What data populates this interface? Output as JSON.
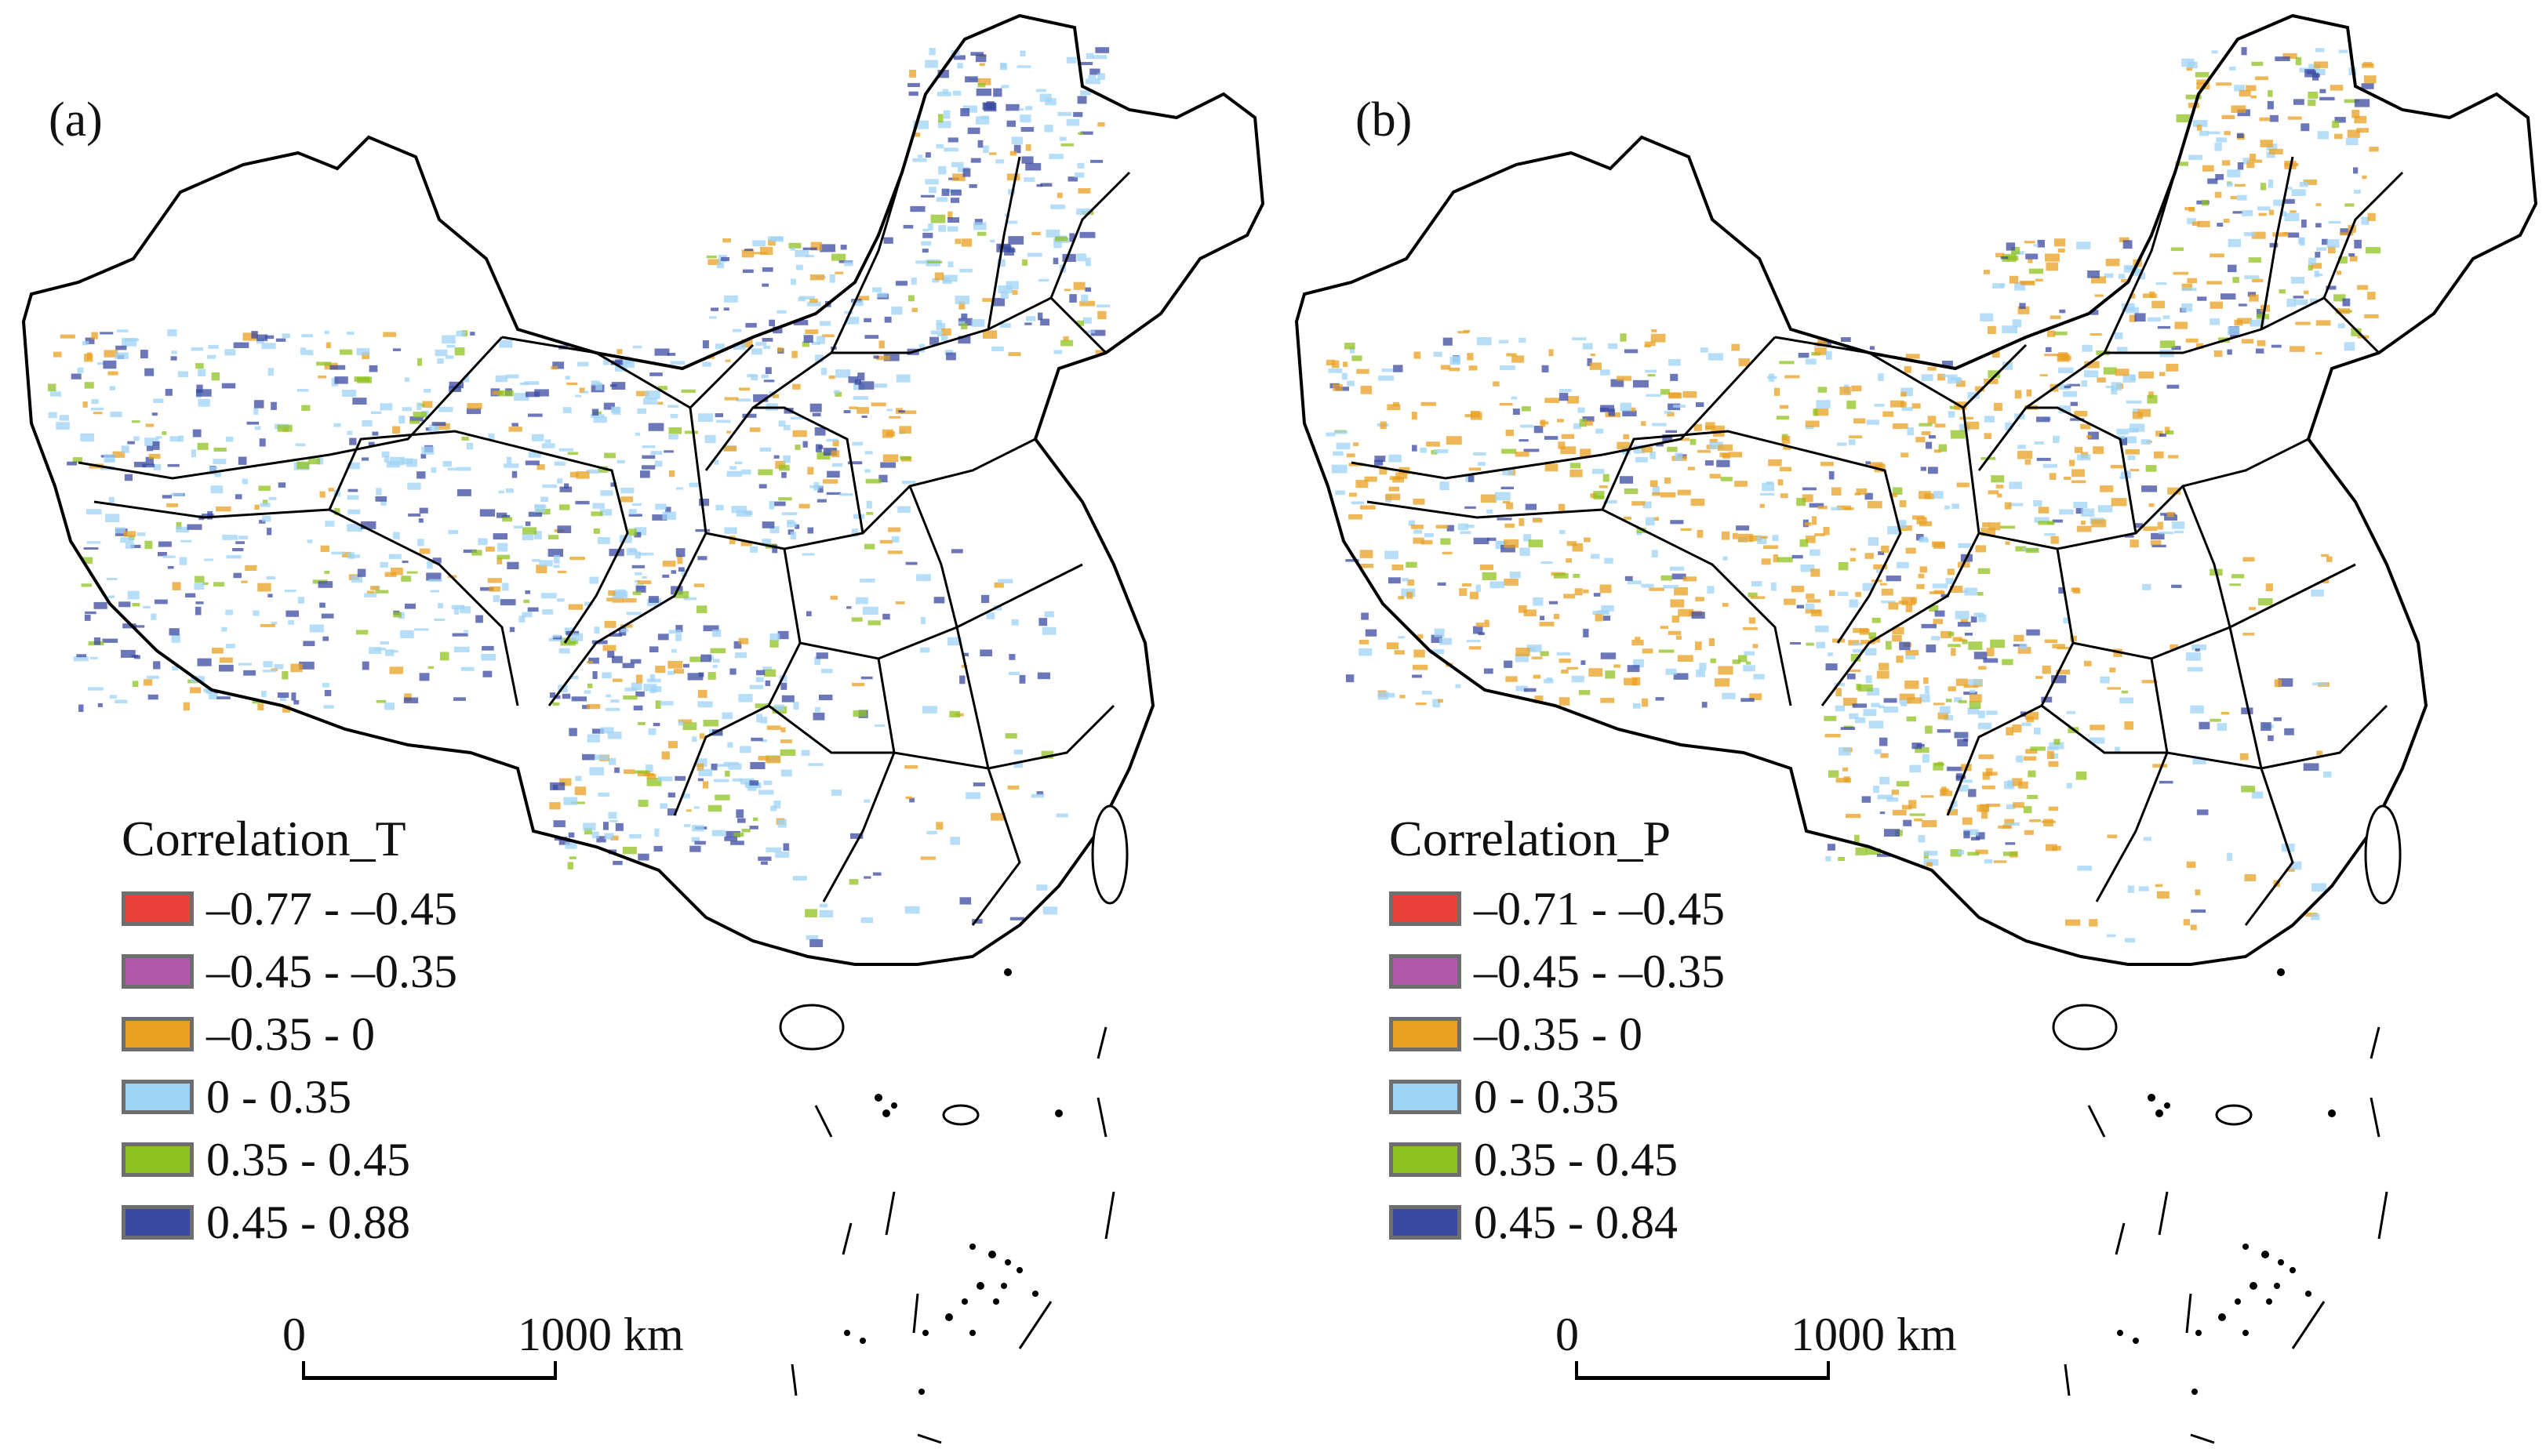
{
  "panels": [
    {
      "label": "(a)",
      "legend": {
        "title": "Correlation_T",
        "items": [
          {
            "label": "–0.77 - –0.45",
            "color": "#e8413a"
          },
          {
            "label": "–0.45 - –0.35",
            "color": "#b158a8"
          },
          {
            "label": "–0.35 - 0",
            "color": "#e8a021"
          },
          {
            "label": "0 - 0.35",
            "color": "#9fd3f5"
          },
          {
            "label": "0.35 - 0.45",
            "color": "#8fc21f"
          },
          {
            "label": "0.45 - 0.88",
            "color": "#3a4aa0"
          }
        ]
      },
      "scalebar": {
        "start": "0",
        "end": "1000 km"
      },
      "dominant": [
        "#9fd3f5",
        "#3a4aa0",
        "#e8a021",
        "#8fc21f"
      ]
    },
    {
      "label": "(b)",
      "legend": {
        "title": "Correlation_P",
        "items": [
          {
            "label": "–0.71 - –0.45",
            "color": "#e8413a"
          },
          {
            "label": "–0.45 - –0.35",
            "color": "#b158a8"
          },
          {
            "label": "–0.35 - 0",
            "color": "#e8a021"
          },
          {
            "label": "0 - 0.35",
            "color": "#9fd3f5"
          },
          {
            "label": "0.35 - 0.45",
            "color": "#8fc21f"
          },
          {
            "label": "0.45 - 0.84",
            "color": "#3a4aa0"
          }
        ]
      },
      "scalebar": {
        "start": "0",
        "end": "1000 km"
      },
      "dominant": [
        "#e8a021",
        "#9fd3f5",
        "#3a4aa0",
        "#8fc21f"
      ]
    }
  ]
}
